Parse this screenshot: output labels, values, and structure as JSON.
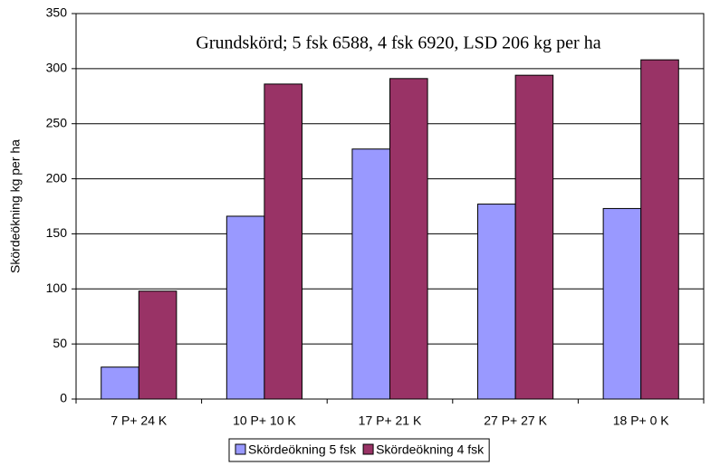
{
  "chart_data": {
    "type": "bar",
    "annotation": "Grundskörd; 5 fsk 6588, 4 fsk 6920, LSD 206 kg per ha",
    "y_label": "Skördeökning kg per ha",
    "categories": [
      "7 P+ 24 K",
      "10 P+ 10 K",
      "17 P+ 21 K",
      "27 P+ 27 K",
      "18 P+ 0 K"
    ],
    "series": [
      {
        "name": "Skördeökning 5 fsk",
        "color": "#9999ff",
        "values": [
          29,
          166,
          227,
          177,
          173
        ]
      },
      {
        "name": "Skördeökning 4 fsk",
        "color": "#993366",
        "values": [
          98,
          286,
          291,
          294,
          308
        ]
      }
    ],
    "ylim": [
      0,
      350
    ],
    "yticks": [
      0,
      50,
      100,
      150,
      200,
      250,
      300,
      350
    ],
    "grid": true,
    "legend": "bottom"
  }
}
